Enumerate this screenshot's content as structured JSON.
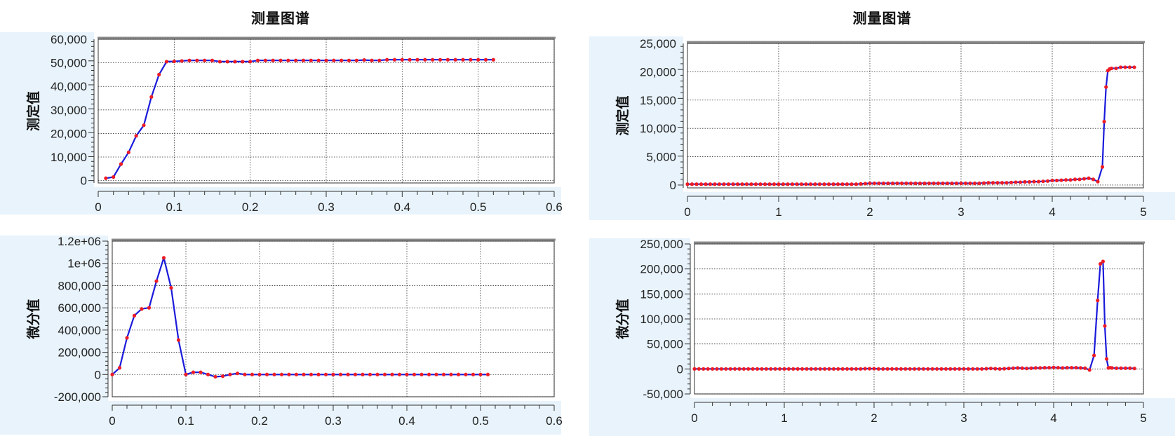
{
  "panels": [
    {
      "title": "测量图谱",
      "charts": [
        {
          "type": "line",
          "ylabel": "测定值",
          "xlim": [
            0,
            0.6
          ],
          "xticks": [
            0,
            0.1,
            0.2,
            0.3,
            0.4,
            0.5,
            0.6
          ],
          "xtick_labels": [
            "0",
            "0.1",
            "0.2",
            "0.3",
            "0.4",
            "0.5",
            "0.6"
          ],
          "ylim": [
            -1000,
            60000
          ],
          "yticks": [
            0,
            10000,
            20000,
            30000,
            40000,
            50000,
            60000
          ],
          "ytick_labels": [
            "0",
            "10,000",
            "20,000",
            "30,000",
            "40,000",
            "50,000",
            "60,000"
          ],
          "grid": true,
          "series_color": "#1a1adb",
          "marker_color": "#ee1c24",
          "x": [
            0.01,
            0.02,
            0.03,
            0.04,
            0.05,
            0.06,
            0.07,
            0.08,
            0.09,
            0.1,
            0.11,
            0.12,
            0.13,
            0.14,
            0.15,
            0.16,
            0.17,
            0.18,
            0.19,
            0.2,
            0.21,
            0.22,
            0.23,
            0.24,
            0.25,
            0.26,
            0.27,
            0.28,
            0.29,
            0.3,
            0.31,
            0.32,
            0.33,
            0.34,
            0.35,
            0.36,
            0.37,
            0.38,
            0.39,
            0.4,
            0.41,
            0.42,
            0.43,
            0.44,
            0.45,
            0.46,
            0.47,
            0.48,
            0.49,
            0.5,
            0.51,
            0.52
          ],
          "y": [
            1000,
            1500,
            7000,
            12000,
            19000,
            23500,
            35500,
            45000,
            50500,
            50600,
            50800,
            51000,
            51000,
            51000,
            51000,
            50500,
            50500,
            50500,
            50500,
            50500,
            51000,
            51000,
            51000,
            51000,
            51000,
            51000,
            51000,
            51000,
            51000,
            51000,
            51000,
            51000,
            51000,
            51000,
            51200,
            51000,
            51000,
            51300,
            51300,
            51300,
            51300,
            51300,
            51300,
            51300,
            51300,
            51300,
            51300,
            51300,
            51300,
            51300,
            51300,
            51300
          ]
        },
        {
          "type": "line",
          "ylabel": "微分值",
          "xlim": [
            0,
            0.6
          ],
          "xticks": [
            0,
            0.1,
            0.2,
            0.3,
            0.4,
            0.5,
            0.6
          ],
          "xtick_labels": [
            "0",
            "0.1",
            "0.2",
            "0.3",
            "0.4",
            "0.5",
            "0.6"
          ],
          "ylim": [
            -200000,
            1200000
          ],
          "yticks": [
            -200000,
            0,
            200000,
            400000,
            600000,
            800000,
            1000000,
            1200000
          ],
          "ytick_labels": [
            "-200,000",
            "0",
            "200,000",
            "400,000",
            "600,000",
            "800,000",
            "1e+06",
            "1.2e+06"
          ],
          "grid": true,
          "series_color": "#1a1adb",
          "marker_color": "#ee1c24",
          "x": [
            0.0,
            0.01,
            0.02,
            0.03,
            0.04,
            0.05,
            0.06,
            0.07,
            0.08,
            0.09,
            0.1,
            0.11,
            0.12,
            0.13,
            0.14,
            0.15,
            0.16,
            0.17,
            0.18,
            0.19,
            0.2,
            0.21,
            0.22,
            0.23,
            0.24,
            0.25,
            0.26,
            0.27,
            0.28,
            0.29,
            0.3,
            0.31,
            0.32,
            0.33,
            0.34,
            0.35,
            0.36,
            0.37,
            0.38,
            0.39,
            0.4,
            0.41,
            0.42,
            0.43,
            0.44,
            0.45,
            0.46,
            0.47,
            0.48,
            0.49,
            0.5,
            0.51
          ],
          "y": [
            0,
            60000,
            330000,
            530000,
            590000,
            600000,
            840000,
            1050000,
            780000,
            310000,
            0,
            20000,
            20000,
            0,
            -20000,
            -15000,
            0,
            10000,
            0,
            0,
            0,
            0,
            0,
            0,
            0,
            0,
            0,
            0,
            0,
            0,
            0,
            0,
            0,
            0,
            0,
            0,
            0,
            0,
            0,
            0,
            0,
            0,
            0,
            0,
            0,
            0,
            0,
            0,
            0,
            0,
            0,
            0
          ]
        }
      ]
    },
    {
      "title": "测量图谱",
      "charts": [
        {
          "type": "line",
          "ylabel": "测定值",
          "xlim": [
            0,
            5
          ],
          "xticks": [
            0,
            1,
            2,
            3,
            4,
            5
          ],
          "xtick_labels": [
            "0",
            "1",
            "2",
            "3",
            "4",
            "5"
          ],
          "ylim": [
            -500,
            25000
          ],
          "yticks": [
            0,
            5000,
            10000,
            15000,
            20000,
            25000
          ],
          "ytick_labels": [
            "0",
            "5,000",
            "10,000",
            "15,000",
            "20,000",
            "25,000"
          ],
          "grid": true,
          "series_color": "#1a1adb",
          "marker_color": "#ee1c24",
          "x": [
            0.0,
            0.05,
            0.1,
            0.15,
            0.2,
            0.25,
            0.3,
            0.35,
            0.4,
            0.45,
            0.5,
            0.55,
            0.6,
            0.65,
            0.7,
            0.75,
            0.8,
            0.85,
            0.9,
            0.95,
            1.0,
            1.05,
            1.1,
            1.15,
            1.2,
            1.25,
            1.3,
            1.35,
            1.4,
            1.45,
            1.5,
            1.55,
            1.6,
            1.65,
            1.7,
            1.75,
            1.8,
            1.85,
            1.9,
            1.95,
            2.0,
            2.05,
            2.1,
            2.15,
            2.2,
            2.25,
            2.3,
            2.35,
            2.4,
            2.45,
            2.5,
            2.55,
            2.6,
            2.65,
            2.7,
            2.75,
            2.8,
            2.85,
            2.9,
            2.95,
            3.0,
            3.05,
            3.1,
            3.15,
            3.2,
            3.25,
            3.3,
            3.35,
            3.4,
            3.45,
            3.5,
            3.55,
            3.6,
            3.65,
            3.7,
            3.75,
            3.8,
            3.85,
            3.9,
            3.95,
            4.0,
            4.05,
            4.1,
            4.15,
            4.2,
            4.25,
            4.3,
            4.35,
            4.4,
            4.45,
            4.5,
            4.55,
            4.57,
            4.59,
            4.61,
            4.63,
            4.65,
            4.7,
            4.75,
            4.8,
            4.85,
            4.9
          ],
          "y": [
            150,
            150,
            150,
            150,
            150,
            150,
            150,
            150,
            150,
            150,
            150,
            150,
            150,
            150,
            150,
            150,
            150,
            150,
            150,
            150,
            150,
            150,
            150,
            150,
            150,
            150,
            150,
            150,
            150,
            150,
            150,
            150,
            150,
            150,
            150,
            150,
            150,
            150,
            200,
            250,
            300,
            300,
            300,
            300,
            300,
            300,
            300,
            300,
            300,
            300,
            300,
            300,
            300,
            300,
            300,
            300,
            300,
            300,
            300,
            300,
            300,
            300,
            300,
            300,
            300,
            350,
            400,
            400,
            400,
            400,
            400,
            450,
            500,
            500,
            550,
            550,
            600,
            600,
            650,
            700,
            800,
            800,
            850,
            900,
            900,
            1000,
            1000,
            1100,
            1200,
            1000,
            600,
            3200,
            11200,
            17300,
            20200,
            20500,
            20600,
            20600,
            20800,
            20800,
            20800,
            20800
          ]
        },
        {
          "type": "line",
          "ylabel": "微分值",
          "xlim": [
            0,
            5
          ],
          "xticks": [
            0,
            1,
            2,
            3,
            4,
            5
          ],
          "xtick_labels": [
            "0",
            "1",
            "2",
            "3",
            "4",
            "5"
          ],
          "ylim": [
            -50000,
            250000
          ],
          "yticks": [
            -50000,
            0,
            50000,
            100000,
            150000,
            200000,
            250000
          ],
          "ytick_labels": [
            "-50,000",
            "0",
            "50,000",
            "100,000",
            "150,000",
            "200,000",
            "250,000"
          ],
          "grid": true,
          "series_color": "#1a1adb",
          "marker_color": "#ee1c24",
          "x": [
            0.0,
            0.05,
            0.1,
            0.15,
            0.2,
            0.25,
            0.3,
            0.35,
            0.4,
            0.45,
            0.5,
            0.55,
            0.6,
            0.65,
            0.7,
            0.75,
            0.8,
            0.85,
            0.9,
            0.95,
            1.0,
            1.05,
            1.1,
            1.15,
            1.2,
            1.25,
            1.3,
            1.35,
            1.4,
            1.45,
            1.5,
            1.55,
            1.6,
            1.65,
            1.7,
            1.75,
            1.8,
            1.85,
            1.9,
            1.95,
            2.0,
            2.05,
            2.1,
            2.15,
            2.2,
            2.25,
            2.3,
            2.35,
            2.4,
            2.45,
            2.5,
            2.55,
            2.6,
            2.65,
            2.7,
            2.75,
            2.8,
            2.85,
            2.9,
            2.95,
            3.0,
            3.05,
            3.1,
            3.15,
            3.2,
            3.25,
            3.3,
            3.35,
            3.4,
            3.45,
            3.5,
            3.55,
            3.6,
            3.65,
            3.7,
            3.75,
            3.8,
            3.85,
            3.9,
            3.95,
            4.0,
            4.05,
            4.1,
            4.15,
            4.2,
            4.25,
            4.3,
            4.35,
            4.4,
            4.45,
            4.49,
            4.52,
            4.55,
            4.57,
            4.59,
            4.61,
            4.63,
            4.65,
            4.7,
            4.75,
            4.8,
            4.85,
            4.9
          ],
          "y": [
            0,
            0,
            0,
            0,
            0,
            0,
            0,
            0,
            0,
            0,
            0,
            0,
            0,
            0,
            0,
            0,
            0,
            0,
            0,
            0,
            0,
            0,
            0,
            0,
            0,
            0,
            0,
            0,
            0,
            0,
            0,
            0,
            0,
            0,
            0,
            0,
            0,
            0,
            500,
            500,
            500,
            0,
            0,
            0,
            0,
            0,
            0,
            0,
            0,
            0,
            0,
            0,
            0,
            0,
            0,
            0,
            0,
            0,
            0,
            0,
            0,
            0,
            0,
            0,
            0,
            500,
            1000,
            500,
            0,
            500,
            1000,
            1500,
            2000,
            1500,
            1000,
            1500,
            2000,
            2000,
            2500,
            2500,
            3000,
            2500,
            2000,
            2500,
            2500,
            2500,
            2000,
            1500,
            -2000,
            27000,
            137000,
            210000,
            215000,
            86000,
            20000,
            2000,
            2500,
            2000,
            1500,
            1500,
            1500,
            1500,
            1000
          ]
        }
      ]
    }
  ]
}
